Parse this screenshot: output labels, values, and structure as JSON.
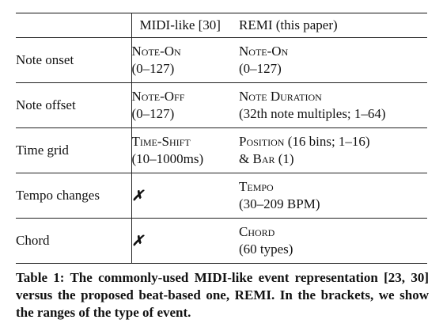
{
  "table": {
    "header": {
      "col1": "",
      "col2": "MIDI-like [30]",
      "col3": "REMI (this paper)"
    },
    "rows": [
      {
        "label": "Note onset",
        "midi": {
          "event": "Note-On",
          "range": "(0–127)"
        },
        "remi": {
          "event": "Note-On",
          "range": "(0–127)"
        }
      },
      {
        "label": "Note offset",
        "midi": {
          "event": "Note-Off",
          "range": "(0–127)"
        },
        "remi": {
          "event": "Note Duration",
          "range": "(32th note multiples; 1–64)"
        }
      },
      {
        "label": "Time grid",
        "midi": {
          "event": "Time-Shift",
          "range": "(10–1000ms)"
        },
        "remi": {
          "event": "Position",
          "range_inline": "(16 bins; 1–16)",
          "extra_prefix": "& ",
          "extra_event": "Bar",
          "extra_range": " (1)"
        }
      },
      {
        "label": "Tempo changes",
        "midi": {
          "mark": "✗"
        },
        "remi": {
          "event": "Tempo",
          "range": "(30–209 BPM)"
        }
      },
      {
        "label": "Chord",
        "midi": {
          "mark": "✗"
        },
        "remi": {
          "event": "Chord",
          "range": "(60 types)"
        }
      }
    ]
  },
  "caption": "Table 1: The commonly-used MIDI-like event representation [23, 30] versus the proposed beat-based one, REMI. In the brackets, we show the ranges of the type of event."
}
